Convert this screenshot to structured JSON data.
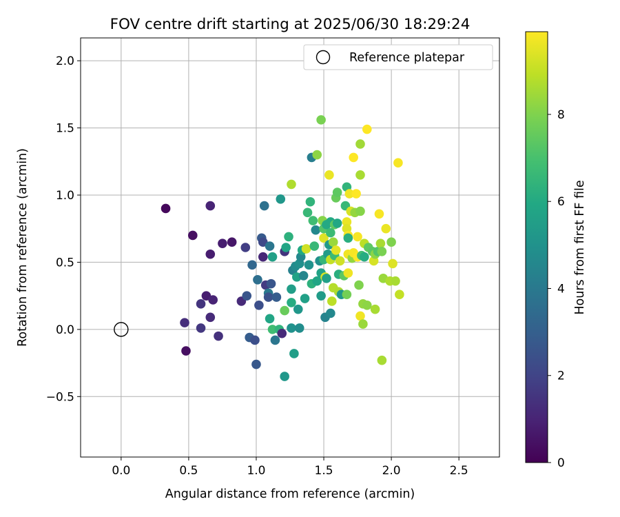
{
  "chart_data": {
    "type": "scatter",
    "title": "FOV centre drift starting at 2025/06/30 18:29:24",
    "xlabel": "Angular distance from reference (arcmin)",
    "ylabel": "Rotation from reference (arcmin)",
    "xlim": [
      -0.3,
      2.8
    ],
    "ylim": [
      -0.95,
      2.17
    ],
    "xticks": [
      0.0,
      0.5,
      1.0,
      1.5,
      2.0,
      2.5
    ],
    "xtick_labels": [
      "0.0",
      "0.5",
      "1.0",
      "1.5",
      "2.0",
      "2.5"
    ],
    "yticks": [
      -0.5,
      0.0,
      0.5,
      1.0,
      1.5,
      2.0
    ],
    "ytick_labels": [
      "−0.5",
      "0.0",
      "0.5",
      "1.0",
      "1.5",
      "2.0"
    ],
    "grid": true,
    "legend": {
      "position": "upper right",
      "label": "Reference platepar",
      "marker": "open-circle"
    },
    "reference_point": {
      "x": 0.0,
      "y": 0.0
    },
    "colorbar": {
      "label": "Hours from first FF file",
      "colormap": "viridis",
      "range": [
        0,
        9.9
      ],
      "ticks": [
        0,
        2,
        4,
        6,
        8
      ],
      "tick_labels": [
        "0",
        "2",
        "4",
        "6",
        "8"
      ]
    },
    "points": [
      {
        "x": 0.33,
        "y": 0.9,
        "c": 0.2
      },
      {
        "x": 0.47,
        "y": 0.05,
        "c": 1.3
      },
      {
        "x": 0.48,
        "y": -0.16,
        "c": 0.4
      },
      {
        "x": 0.53,
        "y": 0.7,
        "c": 0.4
      },
      {
        "x": 0.59,
        "y": 0.19,
        "c": 1.5
      },
      {
        "x": 0.59,
        "y": 0.01,
        "c": 1.6
      },
      {
        "x": 0.63,
        "y": 0.25,
        "c": 0.8
      },
      {
        "x": 0.66,
        "y": 0.92,
        "c": 1.0
      },
      {
        "x": 0.66,
        "y": 0.56,
        "c": 0.8
      },
      {
        "x": 0.66,
        "y": 0.09,
        "c": 1.2
      },
      {
        "x": 0.68,
        "y": 0.22,
        "c": 1.0
      },
      {
        "x": 0.72,
        "y": -0.05,
        "c": 1.4
      },
      {
        "x": 0.75,
        "y": 0.64,
        "c": 0.8
      },
      {
        "x": 0.82,
        "y": 0.65,
        "c": 0.6
      },
      {
        "x": 0.89,
        "y": 0.21,
        "c": 1.2
      },
      {
        "x": 0.92,
        "y": 0.61,
        "c": 1.8
      },
      {
        "x": 0.93,
        "y": 0.25,
        "c": 2.6
      },
      {
        "x": 0.95,
        "y": -0.06,
        "c": 2.9
      },
      {
        "x": 0.97,
        "y": 0.48,
        "c": 3.3
      },
      {
        "x": 0.99,
        "y": -0.08,
        "c": 2.4
      },
      {
        "x": 1.0,
        "y": -0.26,
        "c": 2.7
      },
      {
        "x": 1.01,
        "y": 0.37,
        "c": 3.6
      },
      {
        "x": 1.02,
        "y": 0.18,
        "c": 2.4
      },
      {
        "x": 1.04,
        "y": 0.68,
        "c": 2.8
      },
      {
        "x": 1.05,
        "y": 0.65,
        "c": 2.2
      },
      {
        "x": 1.05,
        "y": 0.54,
        "c": 1.1
      },
      {
        "x": 1.06,
        "y": 0.92,
        "c": 3.7
      },
      {
        "x": 1.07,
        "y": 0.33,
        "c": 1.7
      },
      {
        "x": 1.09,
        "y": 0.27,
        "c": 4.0
      },
      {
        "x": 1.09,
        "y": 0.24,
        "c": 2.5
      },
      {
        "x": 1.1,
        "y": 0.62,
        "c": 3.9
      },
      {
        "x": 1.1,
        "y": 0.08,
        "c": 5.8
      },
      {
        "x": 1.11,
        "y": 0.34,
        "c": 2.6
      },
      {
        "x": 1.12,
        "y": 0.54,
        "c": 5.6
      },
      {
        "x": 1.12,
        "y": 0.0,
        "c": 6.8
      },
      {
        "x": 1.14,
        "y": -0.08,
        "c": 3.9
      },
      {
        "x": 1.15,
        "y": 0.24,
        "c": 2.9
      },
      {
        "x": 1.17,
        "y": -0.0,
        "c": 6.4
      },
      {
        "x": 1.18,
        "y": 0.97,
        "c": 5.2
      },
      {
        "x": 1.19,
        "y": -0.03,
        "c": 1.2
      },
      {
        "x": 1.21,
        "y": 0.58,
        "c": 1.5
      },
      {
        "x": 1.21,
        "y": 0.14,
        "c": 7.6
      },
      {
        "x": 1.21,
        "y": -0.35,
        "c": 5.2
      },
      {
        "x": 1.22,
        "y": 0.61,
        "c": 5.8
      },
      {
        "x": 1.24,
        "y": 0.69,
        "c": 6.3
      },
      {
        "x": 1.26,
        "y": 1.08,
        "c": 8.7
      },
      {
        "x": 1.26,
        "y": 0.3,
        "c": 5.5
      },
      {
        "x": 1.26,
        "y": 0.2,
        "c": 6.1
      },
      {
        "x": 1.26,
        "y": 0.01,
        "c": 5.0
      },
      {
        "x": 1.27,
        "y": 0.44,
        "c": 4.3
      },
      {
        "x": 1.28,
        "y": -0.18,
        "c": 5.5
      },
      {
        "x": 1.29,
        "y": 0.47,
        "c": 4.7
      },
      {
        "x": 1.3,
        "y": 0.39,
        "c": 5.7
      },
      {
        "x": 1.31,
        "y": 0.15,
        "c": 5.2
      },
      {
        "x": 1.32,
        "y": 0.49,
        "c": 4.9
      },
      {
        "x": 1.32,
        "y": 0.01,
        "c": 4.8
      },
      {
        "x": 1.33,
        "y": 0.54,
        "c": 4.6
      },
      {
        "x": 1.34,
        "y": 0.59,
        "c": 6.0
      },
      {
        "x": 1.35,
        "y": 0.4,
        "c": 4.5
      },
      {
        "x": 1.36,
        "y": 0.23,
        "c": 5.6
      },
      {
        "x": 1.37,
        "y": 0.6,
        "c": 9.2
      },
      {
        "x": 1.38,
        "y": 0.87,
        "c": 6.6
      },
      {
        "x": 1.39,
        "y": 0.48,
        "c": 5.0
      },
      {
        "x": 1.4,
        "y": 0.95,
        "c": 6.4
      },
      {
        "x": 1.41,
        "y": 1.28,
        "c": 4.2
      },
      {
        "x": 1.41,
        "y": 0.34,
        "c": 6.3
      },
      {
        "x": 1.42,
        "y": 0.81,
        "c": 6.8
      },
      {
        "x": 1.43,
        "y": 0.62,
        "c": 6.6
      },
      {
        "x": 1.44,
        "y": 0.74,
        "c": 4.6
      },
      {
        "x": 1.45,
        "y": 1.3,
        "c": 8.2
      },
      {
        "x": 1.45,
        "y": 0.36,
        "c": 5.8
      },
      {
        "x": 1.47,
        "y": 0.51,
        "c": 4.9
      },
      {
        "x": 1.48,
        "y": 1.56,
        "c": 7.9
      },
      {
        "x": 1.48,
        "y": 0.42,
        "c": 5.7
      },
      {
        "x": 1.48,
        "y": 0.25,
        "c": 5.4
      },
      {
        "x": 1.49,
        "y": 0.81,
        "c": 8.1
      },
      {
        "x": 1.5,
        "y": 0.75,
        "c": 7.2
      },
      {
        "x": 1.5,
        "y": 0.68,
        "c": 9.4
      },
      {
        "x": 1.5,
        "y": 0.52,
        "c": 6.5
      },
      {
        "x": 1.51,
        "y": 0.09,
        "c": 4.4
      },
      {
        "x": 1.51,
        "y": 0.39,
        "c": 9.3
      },
      {
        "x": 1.52,
        "y": 0.78,
        "c": 6.0
      },
      {
        "x": 1.52,
        "y": 0.38,
        "c": 5.6
      },
      {
        "x": 1.53,
        "y": 0.56,
        "c": 5.4
      },
      {
        "x": 1.54,
        "y": 0.63,
        "c": 5.3
      },
      {
        "x": 1.54,
        "y": 1.15,
        "c": 9.6
      },
      {
        "x": 1.55,
        "y": 0.8,
        "c": 6.0
      },
      {
        "x": 1.55,
        "y": 0.72,
        "c": 6.7
      },
      {
        "x": 1.55,
        "y": 0.52,
        "c": 9.0
      },
      {
        "x": 1.55,
        "y": 0.12,
        "c": 4.6
      },
      {
        "x": 1.56,
        "y": 0.21,
        "c": 8.9
      },
      {
        "x": 1.57,
        "y": 0.65,
        "c": 8.4
      },
      {
        "x": 1.57,
        "y": 0.31,
        "c": 8.8
      },
      {
        "x": 1.58,
        "y": 0.78,
        "c": 7.4
      },
      {
        "x": 1.58,
        "y": 0.55,
        "c": 6.7
      },
      {
        "x": 1.59,
        "y": 0.98,
        "c": 7.6
      },
      {
        "x": 1.59,
        "y": 0.59,
        "c": 9.5
      },
      {
        "x": 1.6,
        "y": 1.02,
        "c": 7.4
      },
      {
        "x": 1.6,
        "y": 0.79,
        "c": 5.9
      },
      {
        "x": 1.61,
        "y": 0.41,
        "c": 6.2
      },
      {
        "x": 1.61,
        "y": 0.28,
        "c": 8.7
      },
      {
        "x": 1.62,
        "y": 0.51,
        "c": 9.2
      },
      {
        "x": 1.63,
        "y": 0.26,
        "c": 5.3
      },
      {
        "x": 1.65,
        "y": 0.4,
        "c": 7.4
      },
      {
        "x": 1.66,
        "y": 0.92,
        "c": 6.6
      },
      {
        "x": 1.67,
        "y": 1.06,
        "c": 6.4
      },
      {
        "x": 1.67,
        "y": 0.8,
        "c": 9.6
      },
      {
        "x": 1.67,
        "y": 0.75,
        "c": 9.4
      },
      {
        "x": 1.67,
        "y": 0.26,
        "c": 7.8
      },
      {
        "x": 1.68,
        "y": 0.7,
        "c": 9.8
      },
      {
        "x": 1.68,
        "y": 0.68,
        "c": 6.2
      },
      {
        "x": 1.68,
        "y": 0.56,
        "c": 9.7
      },
      {
        "x": 1.68,
        "y": 0.42,
        "c": 9.7
      },
      {
        "x": 1.69,
        "y": 1.01,
        "c": 9.7
      },
      {
        "x": 1.7,
        "y": 0.88,
        "c": 9.3
      },
      {
        "x": 1.71,
        "y": 0.53,
        "c": 8.3
      },
      {
        "x": 1.72,
        "y": 1.28,
        "c": 9.9
      },
      {
        "x": 1.72,
        "y": 0.57,
        "c": 9.8
      },
      {
        "x": 1.73,
        "y": 0.87,
        "c": 8.3
      },
      {
        "x": 1.74,
        "y": 1.01,
        "c": 9.9
      },
      {
        "x": 1.75,
        "y": 0.54,
        "c": 9.9
      },
      {
        "x": 1.75,
        "y": 0.69,
        "c": 9.8
      },
      {
        "x": 1.76,
        "y": 0.33,
        "c": 8.0
      },
      {
        "x": 1.77,
        "y": 0.88,
        "c": 8.1
      },
      {
        "x": 1.77,
        "y": 0.1,
        "c": 9.7
      },
      {
        "x": 1.77,
        "y": 1.38,
        "c": 8.5
      },
      {
        "x": 1.77,
        "y": 1.15,
        "c": 8.6
      },
      {
        "x": 1.78,
        "y": 0.55,
        "c": 6.9
      },
      {
        "x": 1.79,
        "y": 0.04,
        "c": 8.4
      },
      {
        "x": 1.79,
        "y": 0.19,
        "c": 8.3
      },
      {
        "x": 1.8,
        "y": 0.64,
        "c": 8.9
      },
      {
        "x": 1.8,
        "y": 0.54,
        "c": 6.1
      },
      {
        "x": 1.82,
        "y": 1.49,
        "c": 9.9
      },
      {
        "x": 1.82,
        "y": 0.18,
        "c": 8.2
      },
      {
        "x": 1.83,
        "y": 0.61,
        "c": 7.4
      },
      {
        "x": 1.86,
        "y": 0.58,
        "c": 7.3
      },
      {
        "x": 1.87,
        "y": 0.51,
        "c": 9.3
      },
      {
        "x": 1.88,
        "y": 0.15,
        "c": 8.6
      },
      {
        "x": 1.88,
        "y": 0.56,
        "c": 8.2
      },
      {
        "x": 1.9,
        "y": 0.58,
        "c": 7.2
      },
      {
        "x": 1.91,
        "y": 0.86,
        "c": 9.8
      },
      {
        "x": 1.92,
        "y": 0.64,
        "c": 8.6
      },
      {
        "x": 1.93,
        "y": -0.23,
        "c": 8.6
      },
      {
        "x": 1.93,
        "y": 0.58,
        "c": 7.9
      },
      {
        "x": 1.94,
        "y": 0.38,
        "c": 8.4
      },
      {
        "x": 1.96,
        "y": 0.75,
        "c": 9.6
      },
      {
        "x": 1.99,
        "y": 0.36,
        "c": 8.7
      },
      {
        "x": 2.0,
        "y": 0.65,
        "c": 8.0
      },
      {
        "x": 2.01,
        "y": 0.49,
        "c": 9.4
      },
      {
        "x": 2.03,
        "y": 0.36,
        "c": 8.6
      },
      {
        "x": 2.05,
        "y": 1.24,
        "c": 9.8
      },
      {
        "x": 2.06,
        "y": 0.26,
        "c": 9.0
      }
    ]
  }
}
